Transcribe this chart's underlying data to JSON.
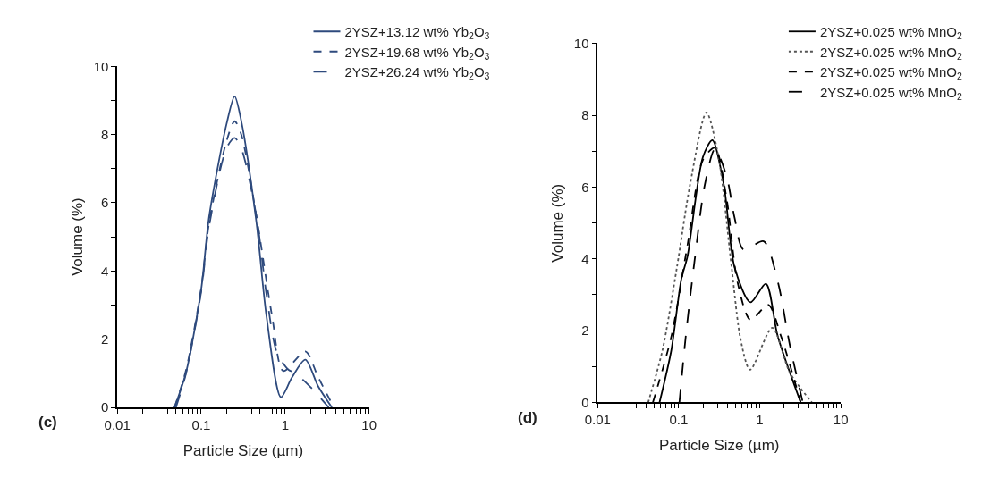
{
  "chart_data": [
    {
      "type": "line",
      "xlabel": "Particle Size (µm)",
      "ylabel": "Volume (%)",
      "annotations": [
        "(c)"
      ],
      "log": "x",
      "legend": "top right",
      "marker": "none",
      "xlim": [
        0.01,
        10
      ],
      "ylim": [
        0,
        10
      ],
      "xticks": [
        0.01,
        {
          "value": 0.02,
          "label": null
        },
        {
          "value": 0.03,
          "label": null
        },
        {
          "value": 0.04,
          "label": null
        },
        {
          "value": 0.05,
          "label": null
        },
        {
          "value": 0.06,
          "label": null
        },
        {
          "value": 0.07,
          "label": null
        },
        {
          "value": 0.08,
          "label": null
        },
        {
          "value": 0.09,
          "label": null
        },
        0.1,
        {
          "value": 0.2,
          "label": null
        },
        {
          "value": 0.3,
          "label": null
        },
        {
          "value": 0.4,
          "label": null
        },
        {
          "value": 0.5,
          "label": null
        },
        {
          "value": 0.6,
          "label": null
        },
        {
          "value": 0.7,
          "label": null
        },
        {
          "value": 0.8,
          "label": null
        },
        {
          "value": 0.9,
          "label": null
        },
        1,
        {
          "value": 2,
          "label": null
        },
        {
          "value": 3,
          "label": null
        },
        {
          "value": 4,
          "label": null
        },
        {
          "value": 5,
          "label": null
        },
        {
          "value": 6,
          "label": null
        },
        {
          "value": 7,
          "label": null
        },
        {
          "value": 8,
          "label": null
        },
        {
          "value": 9,
          "label": null
        },
        10
      ],
      "yticks": [
        0,
        {
          "value": 1,
          "label": null
        },
        2,
        {
          "value": 3,
          "label": null
        },
        4,
        {
          "value": 5,
          "label": null
        },
        6,
        {
          "value": 7,
          "label": null
        },
        8,
        {
          "value": 9,
          "label": null
        },
        10
      ],
      "series": [
        {
          "name": "2YSZ+13.12 wt% Yb$_{2}$O$_{3}$",
          "color": "#2e4a7d",
          "line_style": "solid",
          "x": [
            0.048,
            0.066,
            0.1,
            0.124,
            0.2,
            0.25,
            0.3,
            0.455,
            0.6,
            0.89,
            1.2,
            1.74,
            2.46,
            3.6
          ],
          "values": [
            0,
            1.03,
            3.47,
            5.58,
            8.3,
            9.12,
            8.4,
            5.42,
            2.66,
            0.3,
            0.87,
            1.4,
            0.63,
            0
          ]
        },
        {
          "name": "2YSZ+19.68 wt% Yb$_{2}$O$_{3}$",
          "color": "#2e4a7d",
          "line_style": "dashed",
          "x": [
            0.048,
            0.066,
            0.1,
            0.124,
            0.2,
            0.25,
            0.3,
            0.455,
            0.7,
            0.95,
            1.74,
            2.46,
            3.8
          ],
          "values": [
            0,
            1.1,
            3.5,
            5.4,
            7.8,
            8.39,
            8.0,
            5.6,
            2.66,
            1.07,
            1.64,
            0.9,
            0
          ]
        },
        {
          "name": "2YSZ+26.24 wt% Yb$_{2}$O$_{3}$",
          "color": "#2e4a7d",
          "line_style": "longdash",
          "x": [
            0.05,
            0.066,
            0.1,
            0.124,
            0.2,
            0.25,
            0.3,
            0.455,
            0.6,
            0.8,
            1.1,
            1.3,
            2.0,
            3.3
          ],
          "values": [
            0,
            1.0,
            3.4,
            5.3,
            7.6,
            7.9,
            7.6,
            5.6,
            3.3,
            1.6,
            1.1,
            1.02,
            0.6,
            0
          ]
        }
      ]
    },
    {
      "type": "line",
      "xlabel": "Particle Size (µm)",
      "ylabel": "Volume (%)",
      "annotations": [
        "(d)"
      ],
      "log": "x",
      "legend": "top right",
      "marker": "none",
      "xlim": [
        0.01,
        10
      ],
      "ylim": [
        0,
        10
      ],
      "xticks": [
        0.01,
        {
          "value": 0.02,
          "label": null
        },
        {
          "value": 0.03,
          "label": null
        },
        {
          "value": 0.04,
          "label": null
        },
        {
          "value": 0.05,
          "label": null
        },
        {
          "value": 0.06,
          "label": null
        },
        {
          "value": 0.07,
          "label": null
        },
        {
          "value": 0.08,
          "label": null
        },
        {
          "value": 0.09,
          "label": null
        },
        0.1,
        {
          "value": 0.2,
          "label": null
        },
        {
          "value": 0.3,
          "label": null
        },
        {
          "value": 0.4,
          "label": null
        },
        {
          "value": 0.5,
          "label": null
        },
        {
          "value": 0.6,
          "label": null
        },
        {
          "value": 0.7,
          "label": null
        },
        {
          "value": 0.8,
          "label": null
        },
        {
          "value": 0.9,
          "label": null
        },
        1,
        {
          "value": 2,
          "label": null
        },
        {
          "value": 3,
          "label": null
        },
        {
          "value": 4,
          "label": null
        },
        {
          "value": 5,
          "label": null
        },
        {
          "value": 6,
          "label": null
        },
        {
          "value": 7,
          "label": null
        },
        {
          "value": 8,
          "label": null
        },
        {
          "value": 9,
          "label": null
        },
        10
      ],
      "yticks": [
        0,
        {
          "value": 1,
          "label": null
        },
        2,
        {
          "value": 3,
          "label": null
        },
        4,
        {
          "value": 5,
          "label": null
        },
        6,
        {
          "value": 7,
          "label": null
        },
        8,
        {
          "value": 9,
          "label": null
        },
        10
      ],
      "series": [
        {
          "name": "2YSZ+0.025 wt% MnO$_{2}$",
          "color": "#000000",
          "line_style": "solid",
          "x": [
            0.058,
            0.081,
            0.108,
            0.128,
            0.199,
            0.26,
            0.36,
            0.49,
            0.77,
            1.19,
            1.67,
            3.2
          ],
          "values": [
            0,
            1.45,
            3.45,
            4.06,
            6.84,
            7.31,
            6.07,
            3.76,
            2.79,
            3.31,
            1.84,
            0
          ]
        },
        {
          "name": "2YSZ+0.025 wt% MnO$_{2}$",
          "color": "#555555",
          "line_style": "dotted",
          "x": [
            0.042,
            0.063,
            0.095,
            0.138,
            0.22,
            0.31,
            0.45,
            0.58,
            0.76,
            1.43,
            2.35,
            4.4
          ],
          "values": [
            0,
            1.45,
            3.76,
            6.07,
            8.08,
            6.84,
            3.76,
            1.76,
            0.91,
            2.08,
            0.83,
            0
          ]
        },
        {
          "name": "2YSZ+0.025 wt% MnO$_{2}$",
          "color": "#000000",
          "line_style": "dashed",
          "x": [
            0.048,
            0.081,
            0.128,
            0.199,
            0.28,
            0.39,
            0.53,
            0.77,
            1.27,
            1.84,
            3.2
          ],
          "values": [
            0,
            1.83,
            4.37,
            6.76,
            7.1,
            5.68,
            3.37,
            2.3,
            2.72,
            1.83,
            0
          ]
        },
        {
          "name": "2YSZ+0.025 wt% MnO$_{2}$",
          "color": "#000000",
          "line_style": "longdash",
          "x": [
            0.102,
            0.122,
            0.156,
            0.21,
            0.28,
            0.39,
            0.49,
            0.63,
            1.12,
            1.67,
            2.35,
            3.4
          ],
          "values": [
            0,
            1.83,
            3.9,
            6.07,
            7.06,
            6.3,
            5.14,
            4.26,
            4.49,
            3.37,
            1.6,
            0
          ]
        }
      ]
    }
  ]
}
